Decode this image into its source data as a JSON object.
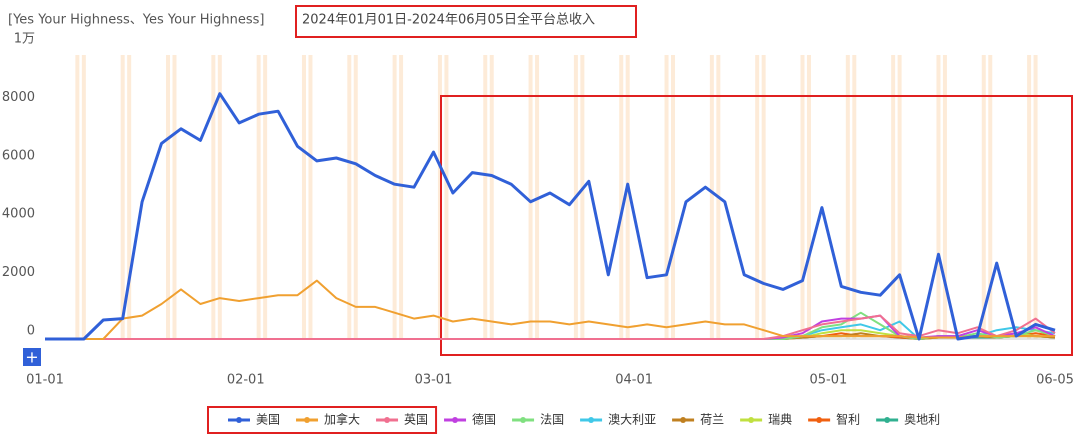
{
  "chart_data": {
    "type": "line",
    "title": "[Yes Your Highness、Yes Your Highness]",
    "subtitle": "2024年01月01日-2024年06月05日全平台总收入",
    "x": [
      "01-01",
      "01-04",
      "01-07",
      "01-10",
      "01-13",
      "01-16",
      "01-19",
      "01-22",
      "01-25",
      "01-28",
      "01-31",
      "02-03",
      "02-06",
      "02-09",
      "02-12",
      "02-15",
      "02-18",
      "02-21",
      "02-24",
      "02-27",
      "03-01",
      "03-04",
      "03-07",
      "03-10",
      "03-13",
      "03-16",
      "03-19",
      "03-22",
      "03-25",
      "03-28",
      "03-31",
      "04-03",
      "04-06",
      "04-09",
      "04-12",
      "04-15",
      "04-18",
      "04-21",
      "04-24",
      "04-27",
      "04-30",
      "05-03",
      "05-06",
      "05-09",
      "05-12",
      "05-15",
      "05-18",
      "05-21",
      "05-24",
      "05-27",
      "05-30",
      "06-02",
      "06-05"
    ],
    "xticks": [
      "01-01",
      "02-01",
      "03-01",
      "04-01",
      "05-01",
      "06-05"
    ],
    "ylim": [
      0,
      10000
    ],
    "yticks": [
      0,
      2000,
      4000,
      6000,
      8000,
      {
        "value": 10000,
        "label": "1万"
      }
    ],
    "grid": false,
    "legend": "bottom",
    "series": [
      {
        "name": "美国",
        "color": "#3060d8",
        "values": [
          0,
          0,
          0,
          650,
          700,
          4700,
          6700,
          7200,
          6800,
          8400,
          7400,
          7700,
          7800,
          6600,
          6100,
          6200,
          6000,
          5600,
          5300,
          5200,
          6400,
          5000,
          5700,
          5600,
          5300,
          4700,
          5000,
          4600,
          5400,
          2200,
          5300,
          2100,
          2200,
          4700,
          5200,
          4700,
          2200,
          1900,
          1700,
          2000,
          4500,
          1800,
          1600,
          1500,
          2200,
          0,
          2900,
          0,
          100,
          2600,
          100,
          500,
          300
        ]
      },
      {
        "name": "加拿大",
        "color": "#f0a030",
        "values": [
          0,
          0,
          0,
          0,
          700,
          800,
          1200,
          1700,
          1200,
          1400,
          1300,
          1400,
          1500,
          1500,
          2000,
          1400,
          1100,
          1100,
          900,
          700,
          800,
          600,
          700,
          600,
          500,
          600,
          600,
          500,
          600,
          500,
          400,
          500,
          400,
          500,
          600,
          500,
          500,
          300,
          100,
          100,
          100,
          100,
          100,
          100,
          100,
          50,
          50,
          50,
          100,
          100,
          100,
          100,
          100
        ]
      },
      {
        "name": "英国",
        "color": "#f07090",
        "values": [
          0,
          0,
          0,
          0,
          0,
          0,
          0,
          0,
          0,
          0,
          0,
          0,
          0,
          0,
          0,
          0,
          0,
          0,
          0,
          0,
          0,
          0,
          0,
          0,
          0,
          0,
          0,
          0,
          0,
          0,
          0,
          0,
          0,
          0,
          0,
          0,
          0,
          0,
          100,
          300,
          500,
          600,
          700,
          800,
          200,
          100,
          300,
          200,
          400,
          100,
          300,
          700,
          200
        ]
      },
      {
        "name": "德国",
        "color": "#c040e0",
        "values": [
          0,
          0,
          0,
          0,
          0,
          0,
          0,
          0,
          0,
          0,
          0,
          0,
          0,
          0,
          0,
          0,
          0,
          0,
          0,
          0,
          0,
          0,
          0,
          0,
          0,
          0,
          0,
          0,
          0,
          0,
          0,
          0,
          0,
          0,
          0,
          0,
          0,
          0,
          50,
          200,
          600,
          700,
          700,
          800,
          100,
          50,
          100,
          100,
          300,
          100,
          200,
          400,
          100
        ]
      },
      {
        "name": "法国",
        "color": "#80e080",
        "values": [
          0,
          0,
          0,
          0,
          0,
          0,
          0,
          0,
          0,
          0,
          0,
          0,
          0,
          0,
          0,
          0,
          0,
          0,
          0,
          0,
          0,
          0,
          0,
          0,
          0,
          0,
          0,
          0,
          0,
          0,
          0,
          0,
          0,
          0,
          0,
          0,
          0,
          0,
          0,
          100,
          400,
          500,
          900,
          500,
          100,
          0,
          100,
          50,
          200,
          50,
          100,
          300,
          100
        ]
      },
      {
        "name": "澳大利亚",
        "color": "#40c8e8",
        "values": [
          0,
          0,
          0,
          0,
          0,
          0,
          0,
          0,
          0,
          0,
          0,
          0,
          0,
          0,
          0,
          0,
          0,
          0,
          0,
          0,
          0,
          0,
          0,
          0,
          0,
          0,
          0,
          0,
          0,
          0,
          0,
          0,
          0,
          0,
          0,
          0,
          0,
          0,
          0,
          100,
          300,
          400,
          500,
          300,
          600,
          0,
          100,
          100,
          100,
          300,
          400,
          300,
          200
        ]
      },
      {
        "name": "荷兰",
        "color": "#c08020",
        "values": [
          0,
          0,
          0,
          0,
          0,
          0,
          0,
          0,
          0,
          0,
          0,
          0,
          0,
          0,
          0,
          0,
          0,
          0,
          0,
          0,
          0,
          0,
          0,
          0,
          0,
          0,
          0,
          0,
          0,
          0,
          0,
          0,
          0,
          0,
          0,
          0,
          0,
          0,
          0,
          50,
          100,
          100,
          200,
          100,
          100,
          0,
          50,
          50,
          100,
          50,
          100,
          100,
          50
        ]
      },
      {
        "name": "瑞典",
        "color": "#c0e040",
        "values": [
          0,
          0,
          0,
          0,
          0,
          0,
          0,
          0,
          0,
          0,
          0,
          0,
          0,
          0,
          0,
          0,
          0,
          0,
          0,
          0,
          0,
          0,
          0,
          0,
          0,
          0,
          0,
          0,
          0,
          0,
          0,
          0,
          0,
          0,
          0,
          0,
          0,
          0,
          0,
          50,
          200,
          300,
          300,
          200,
          100,
          0,
          50,
          50,
          100,
          50,
          200,
          100,
          50
        ]
      },
      {
        "name": "智利",
        "color": "#f06010",
        "values": [
          0,
          0,
          0,
          0,
          0,
          0,
          0,
          0,
          0,
          0,
          0,
          0,
          0,
          0,
          0,
          0,
          0,
          0,
          0,
          0,
          0,
          0,
          0,
          0,
          0,
          0,
          0,
          0,
          0,
          0,
          0,
          0,
          0,
          0,
          0,
          0,
          0,
          0,
          0,
          50,
          100,
          200,
          100,
          100,
          50,
          0,
          50,
          50,
          100,
          50,
          100,
          200,
          100
        ]
      },
      {
        "name": "奥地利",
        "color": "#30b090",
        "values": [
          0,
          0,
          0,
          0,
          0,
          0,
          0,
          0,
          0,
          0,
          0,
          0,
          0,
          0,
          0,
          0,
          0,
          0,
          0,
          0,
          0,
          0,
          0,
          0,
          0,
          0,
          0,
          0,
          0,
          0,
          0,
          0,
          0,
          0,
          0,
          0,
          0,
          0,
          0,
          50,
          100,
          100,
          100,
          100,
          50,
          0,
          50,
          50,
          50,
          50,
          100,
          100,
          50
        ]
      }
    ]
  }
}
